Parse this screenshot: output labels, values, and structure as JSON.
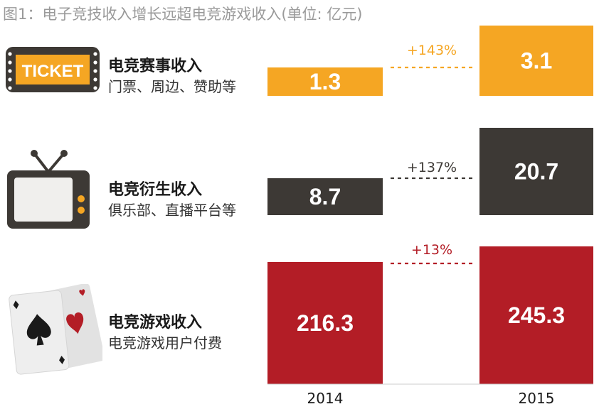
{
  "title": "图1：电子竞技收入增长远超电竞游戏收入(单位: 亿元)",
  "rows": [
    {
      "label": "电竞赛事收入",
      "sublabel": "门票、周边、赞助等",
      "icon": "ticket-icon",
      "icon_text": "TICKET",
      "color": "#f5a623",
      "growth_color": "#f5a623"
    },
    {
      "label": "电竞衍生收入",
      "sublabel": "俱乐部、直播平台等",
      "icon": "tv-icon",
      "color": "#3d3935",
      "growth_color": "#3d3935"
    },
    {
      "label": "电竞游戏收入",
      "sublabel": "电竞游戏用户付费",
      "icon": "playing-cards-icon",
      "color": "#b31d26",
      "growth_color": "#b31d26"
    }
  ],
  "chart_data": {
    "type": "bar",
    "title": "图1：电子竞技收入增长远超电竞游戏收入(单位: 亿元)",
    "categories": [
      "电竞赛事收入",
      "电竞衍生收入",
      "电竞游戏收入"
    ],
    "x": [
      "2014",
      "2015"
    ],
    "series": [
      {
        "name": "2014",
        "values": [
          1.3,
          8.7,
          216.3
        ],
        "labels": [
          "1.3",
          "8.7",
          "216.3"
        ]
      },
      {
        "name": "2015",
        "values": [
          3.1,
          20.7,
          245.3
        ],
        "labels": [
          "3.1",
          "20.7",
          "245.3"
        ]
      }
    ],
    "growth": [
      "+143%",
      "+137%",
      "+13%"
    ],
    "unit": "亿元",
    "xlabel": "",
    "ylabel": ""
  }
}
